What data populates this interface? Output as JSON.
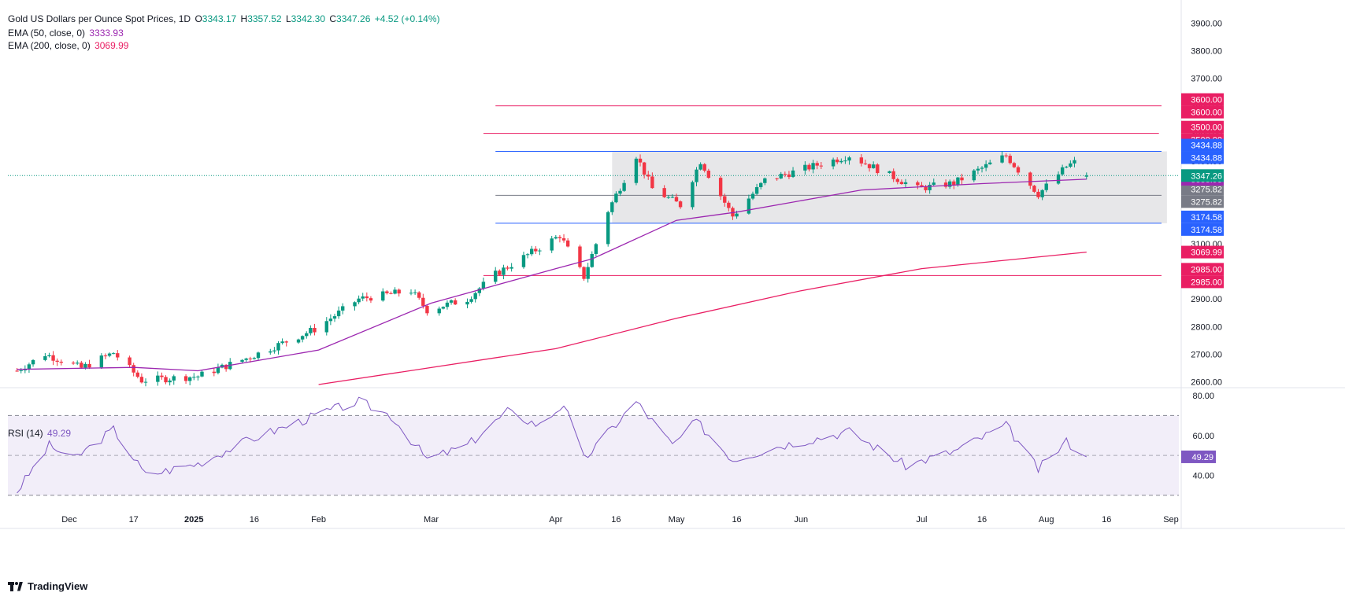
{
  "header": {
    "title": "Gold US Dollars per Ounce Spot Prices, 1D",
    "open_label": "O",
    "open": "3343.17",
    "high_label": "H",
    "high": "3357.52",
    "low_label": "L",
    "low": "3342.30",
    "close_label": "C",
    "close": "3347.26",
    "change": "+4.52 (+0.14%)"
  },
  "ema50": {
    "label": "EMA (50, close, 0)",
    "value": "3333.93",
    "color": "#9c27b0"
  },
  "ema200": {
    "label": "EMA (200, close, 0)",
    "value": "3069.99",
    "color": "#e91e63"
  },
  "rsi_legend": {
    "label": "RSI (14)",
    "value": "49.29",
    "color": "#7e57c2"
  },
  "brand": "TradingView",
  "chart_data": {
    "type": "candlestick",
    "title": "Gold US Dollars per Ounce Spot Prices, 1D",
    "x_axis_labels": [
      "Dec",
      "17",
      "2025",
      "16",
      "Feb",
      "Mar",
      "Apr",
      "16",
      "May",
      "16",
      "Jun",
      "Jul",
      "16",
      "Aug",
      "16",
      "Sep"
    ],
    "price_axis": {
      "ticks": [
        2600,
        2700,
        2800,
        2900,
        3000,
        3100,
        3200,
        3300,
        3400,
        3500,
        3600,
        3700,
        3800,
        3900
      ],
      "range": [
        2590,
        3955
      ]
    },
    "price_anchors": [
      {
        "date": "2024-11-18",
        "value": 2640
      },
      {
        "date": "2024-11-25",
        "value": 2700
      },
      {
        "date": "2024-12-04",
        "value": 2650
      },
      {
        "date": "2024-12-12",
        "value": 2705
      },
      {
        "date": "2024-12-19",
        "value": 2605
      },
      {
        "date": "2025-01-02",
        "value": 2620
      },
      {
        "date": "2025-01-15",
        "value": 2690
      },
      {
        "date": "2025-01-31",
        "value": 2790
      },
      {
        "date": "2025-02-11",
        "value": 2900
      },
      {
        "date": "2025-02-24",
        "value": 2930
      },
      {
        "date": "2025-02-28",
        "value": 2860
      },
      {
        "date": "2025-03-10",
        "value": 2900
      },
      {
        "date": "2025-03-17",
        "value": 2990
      },
      {
        "date": "2025-04-02",
        "value": 3130
      },
      {
        "date": "2025-04-08",
        "value": 2980
      },
      {
        "date": "2025-04-14",
        "value": 3220
      },
      {
        "date": "2025-04-21",
        "value": 3420
      },
      {
        "date": "2025-04-25",
        "value": 3300
      },
      {
        "date": "2025-05-02",
        "value": 3240
      },
      {
        "date": "2025-05-07",
        "value": 3400
      },
      {
        "date": "2025-05-15",
        "value": 3200
      },
      {
        "date": "2025-05-23",
        "value": 3330
      },
      {
        "date": "2025-06-13",
        "value": 3420
      },
      {
        "date": "2025-06-20",
        "value": 3370
      },
      {
        "date": "2025-06-30",
        "value": 3300
      },
      {
        "date": "2025-07-09",
        "value": 3320
      },
      {
        "date": "2025-07-22",
        "value": 3420
      },
      {
        "date": "2025-07-30",
        "value": 3280
      },
      {
        "date": "2025-08-06",
        "value": 3380
      },
      {
        "date": "2025-08-08",
        "value": 3395
      },
      {
        "date": "2025-08-11",
        "value": 3347.26
      }
    ],
    "ema50_series": [
      {
        "date": "2024-11-18",
        "value": 2645
      },
      {
        "date": "2024-12-17",
        "value": 2652
      },
      {
        "date": "2025-01-02",
        "value": 2640
      },
      {
        "date": "2025-02-01",
        "value": 2715
      },
      {
        "date": "2025-03-01",
        "value": 2885
      },
      {
        "date": "2025-04-01",
        "value": 3010
      },
      {
        "date": "2025-04-10",
        "value": 3045
      },
      {
        "date": "2025-05-01",
        "value": 3185
      },
      {
        "date": "2025-05-16",
        "value": 3215
      },
      {
        "date": "2025-06-16",
        "value": 3295
      },
      {
        "date": "2025-07-16",
        "value": 3318
      },
      {
        "date": "2025-08-11",
        "value": 3333.93
      }
    ],
    "ema200_series": [
      {
        "date": "2025-02-01",
        "value": 2590
      },
      {
        "date": "2025-04-01",
        "value": 2720
      },
      {
        "date": "2025-05-01",
        "value": 2830
      },
      {
        "date": "2025-06-01",
        "value": 2930
      },
      {
        "date": "2025-07-01",
        "value": 3010
      },
      {
        "date": "2025-08-11",
        "value": 3069.99
      }
    ],
    "horizontal_levels": [
      {
        "value": 3600.0,
        "label": "3600.00",
        "color": "#e91e63"
      },
      {
        "value": 3500.0,
        "label": "3500.00",
        "color": "#e91e63"
      },
      {
        "value": 3434.88,
        "label": "3434.88",
        "color": "#2962ff"
      },
      {
        "value": 3275.82,
        "label": "3275.82",
        "color": "#787b86"
      },
      {
        "value": 3174.58,
        "label": "3174.58",
        "color": "#2962ff"
      },
      {
        "value": 2985.0,
        "label": "2985.00",
        "color": "#e91e63"
      }
    ],
    "range_box": {
      "from": "2025-04-15",
      "to": "2025-08-31",
      "high": 3434.88,
      "low": 3174.58
    },
    "last_price": {
      "value": 3347.26,
      "label": "3347.26",
      "color": "#089981"
    },
    "ema50_tag": {
      "value": 3333.93,
      "label": "3333.93",
      "color": "#9c27b0"
    },
    "ema200_tag": {
      "value": 3069.99,
      "label": "3069.99",
      "color": "#e91e63"
    },
    "rsi": {
      "ticks": [
        40,
        60,
        80
      ],
      "range": [
        26,
        82
      ],
      "upper_band": 70,
      "middle": 50,
      "lower_band": 30,
      "last": {
        "value": 49.29,
        "label": "49.29"
      },
      "anchors": [
        {
          "date": "2024-11-18",
          "value": 32
        },
        {
          "date": "2024-11-26",
          "value": 55
        },
        {
          "date": "2024-12-02",
          "value": 48
        },
        {
          "date": "2024-12-12",
          "value": 63
        },
        {
          "date": "2024-12-20",
          "value": 40
        },
        {
          "date": "2025-01-02",
          "value": 46
        },
        {
          "date": "2025-01-15",
          "value": 58
        },
        {
          "date": "2025-02-03",
          "value": 72
        },
        {
          "date": "2025-02-11",
          "value": 77
        },
        {
          "date": "2025-02-19",
          "value": 70
        },
        {
          "date": "2025-02-28",
          "value": 48
        },
        {
          "date": "2025-03-10",
          "value": 55
        },
        {
          "date": "2025-03-20",
          "value": 72
        },
        {
          "date": "2025-03-28",
          "value": 65
        },
        {
          "date": "2025-04-03",
          "value": 76
        },
        {
          "date": "2025-04-08",
          "value": 48
        },
        {
          "date": "2025-04-21",
          "value": 77
        },
        {
          "date": "2025-04-30",
          "value": 55
        },
        {
          "date": "2025-05-06",
          "value": 67
        },
        {
          "date": "2025-05-15",
          "value": 48
        },
        {
          "date": "2025-05-27",
          "value": 55
        },
        {
          "date": "2025-06-13",
          "value": 62
        },
        {
          "date": "2025-06-27",
          "value": 45
        },
        {
          "date": "2025-07-09",
          "value": 52
        },
        {
          "date": "2025-07-22",
          "value": 65
        },
        {
          "date": "2025-07-30",
          "value": 43
        },
        {
          "date": "2025-08-06",
          "value": 57
        },
        {
          "date": "2025-08-11",
          "value": 49.29
        }
      ]
    }
  }
}
